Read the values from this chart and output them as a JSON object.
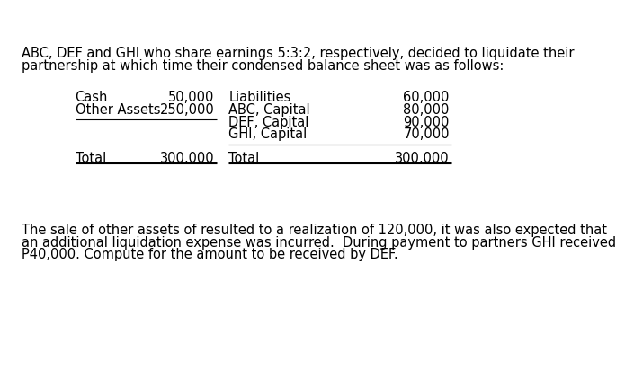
{
  "bg_color": "#ffffff",
  "intro_line1": "ABC, DEF and GHI who share earnings 5:3:2, respectively, decided to liquidate their",
  "intro_line2": "partnership at which time their condensed balance sheet was as follows:",
  "left_labels": [
    "Cash",
    "Other Assets",
    "",
    "",
    "Total"
  ],
  "left_values": [
    "50,000",
    "250,000",
    "",
    "",
    "300,000"
  ],
  "right_labels": [
    "Liabilities",
    "ABC, Capital",
    "DEF, Capital",
    "GHI, Capital",
    "",
    "Total"
  ],
  "right_values": [
    "60,000",
    "80,000",
    "90,000",
    "70,000",
    "",
    "300,000"
  ],
  "footer_line1": "The sale of other assets of resulted to a realization of 120,000, it was also expected that",
  "footer_line2": "an additional liquidation expense was incurred.  During payment to partners GHI received",
  "footer_line3": "P40,000. Compute for the amount to be received by DEF.",
  "font_size": 10.5,
  "font_family": "DejaVu Sans"
}
